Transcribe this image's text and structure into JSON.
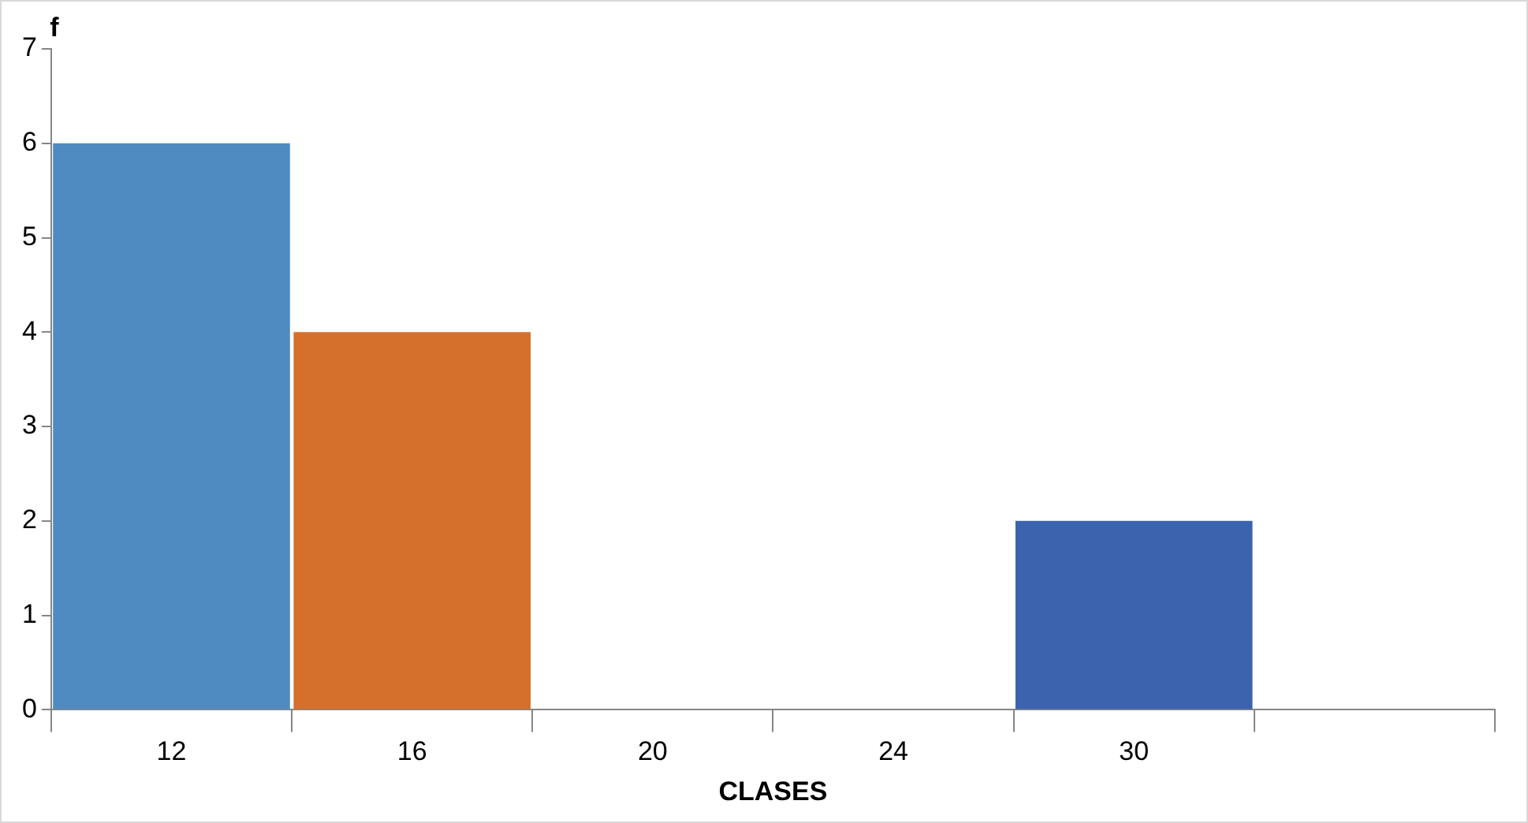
{
  "chart_data": {
    "type": "bar",
    "xlabel": "CLASES",
    "ylabel": "f",
    "categories": [
      "12",
      "16",
      "20",
      "24",
      "30",
      null
    ],
    "values": [
      6,
      4,
      null,
      null,
      2,
      null
    ],
    "colors": [
      "#4f8bc0",
      "#d4702b",
      "#4f8bc0",
      "#4f8bc0",
      "#3c63ad",
      "#4f8bc0"
    ],
    "ylim": [
      0,
      7
    ],
    "yticks": [
      0,
      1,
      2,
      3,
      4,
      5,
      6,
      7
    ],
    "grid": false,
    "legend": false
  }
}
